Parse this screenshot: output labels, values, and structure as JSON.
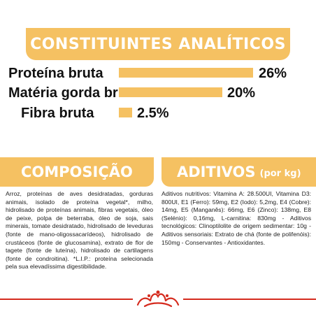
{
  "analytics": {
    "title": "CONSTITUINTES ANALÍTICOS",
    "items": [
      {
        "label": "Proteína bruta",
        "value": "26%",
        "percent": 26
      },
      {
        "label": "Matéria gorda bruta",
        "value": "20%",
        "percent": 20
      },
      {
        "label": "Fibra bruta",
        "value": "2.5%",
        "percent": 2.5
      }
    ]
  },
  "composition": {
    "title": "COMPOSIÇÃO",
    "text": "Arroz, proteínas de aves desidratadas, gorduras animais, isolado de proteína vegetal*, milho, hidrolisado de proteínas animais, fibras vegetais, óleo de peixe, polpa de beterraba, óleo de soja, sais minerais, tomate desidratado, hidrolisado de leveduras (fonte de mano-oligossacarídeos), hidrolisado de crustáceos (fonte de glucosamina), extrato de flor de tagete (fonte de luteína), hidrolisado de cartilagens (fonte de condroitina). *L.I.P.: proteína selecionada pela sua elevadíssima digestibilidade."
  },
  "additives": {
    "title": "ADITIVOS",
    "subtitle": "(por kg)",
    "text": "Aditivos nutritivos: Vitamina A: 28.500UI, Vitamina D3: 800UI, E1 (Ferro): 59mg, E2 (Iodo): 5,2mg, E4 (Cobre): 14mg, E5 (Manganês): 66mg, E6 (Zinco): 138mg, E8 (Selénio): 0,16mg, L-carnitina: 830mg - Aditivos tecnológicos: Clinoptilolite de origem sedimentar: 10g - Aditivos sensoriais: Extrato de chá (fonte de polifenóis): 150mg - Conservantes - Antioxidantes."
  },
  "colors": {
    "accent": "#f5c162",
    "brand_red": "#d52b1e"
  },
  "logo": {
    "icon": "royal-crown-icon"
  }
}
